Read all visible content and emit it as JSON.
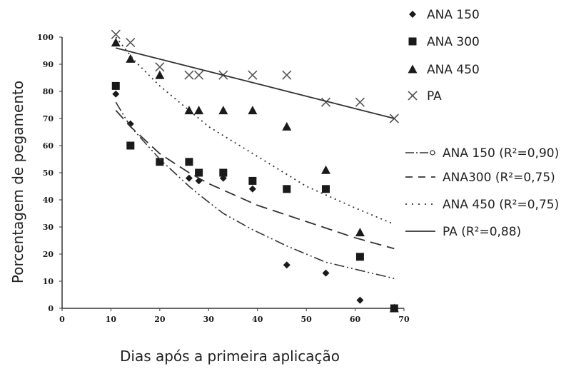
{
  "chart_data": {
    "type": "scatter",
    "xlabel": "Dias após a primeira aplicação",
    "ylabel": "Porcentagem de pegamento",
    "xlim": [
      0,
      70
    ],
    "ylim": [
      0,
      100
    ],
    "xticks": [
      "0",
      "10",
      "20",
      "30",
      "40",
      "50",
      "60",
      "70"
    ],
    "yticks": [
      "0",
      "10",
      "20",
      "30",
      "40",
      "50",
      "60",
      "70",
      "80",
      "90",
      "100"
    ],
    "grid": false,
    "legend_position": "right",
    "series": [
      {
        "name": "ANA 150",
        "marker": "diamond",
        "points": [
          [
            11,
            79
          ],
          [
            14,
            68
          ],
          [
            20,
            54
          ],
          [
            26,
            48
          ],
          [
            28,
            47
          ],
          [
            33,
            48
          ],
          [
            39,
            44
          ],
          [
            46,
            16
          ],
          [
            54,
            13
          ],
          [
            61,
            3
          ],
          [
            68,
            0
          ]
        ]
      },
      {
        "name": "ANA 300",
        "marker": "square",
        "points": [
          [
            11,
            82
          ],
          [
            14,
            60
          ],
          [
            20,
            54
          ],
          [
            26,
            54
          ],
          [
            28,
            50
          ],
          [
            33,
            50
          ],
          [
            39,
            47
          ],
          [
            46,
            44
          ],
          [
            54,
            44
          ],
          [
            61,
            19
          ],
          [
            68,
            0
          ]
        ]
      },
      {
        "name": "ANA 450",
        "marker": "triangle",
        "points": [
          [
            11,
            98
          ],
          [
            14,
            92
          ],
          [
            20,
            86
          ],
          [
            26,
            73
          ],
          [
            28,
            73
          ],
          [
            33,
            73
          ],
          [
            39,
            73
          ],
          [
            46,
            67
          ],
          [
            54,
            51
          ],
          [
            61,
            28
          ],
          [
            68,
            0
          ]
        ]
      },
      {
        "name": "PA",
        "marker": "x",
        "points": [
          [
            11,
            101
          ],
          [
            14,
            98
          ],
          [
            20,
            89
          ],
          [
            26,
            86
          ],
          [
            28,
            86
          ],
          [
            33,
            86
          ],
          [
            39,
            86
          ],
          [
            46,
            86
          ],
          [
            54,
            76
          ],
          [
            61,
            76
          ],
          [
            68,
            70
          ]
        ]
      }
    ],
    "trendlines": [
      {
        "name": "ANA 150 (R²=0,90)",
        "style": "dash-dot-dot",
        "points": [
          [
            11,
            76
          ],
          [
            14,
            67
          ],
          [
            20,
            55
          ],
          [
            26,
            45
          ],
          [
            28,
            42
          ],
          [
            33,
            35
          ],
          [
            39,
            29
          ],
          [
            46,
            23
          ],
          [
            54,
            17
          ],
          [
            61,
            14
          ],
          [
            68,
            11
          ]
        ]
      },
      {
        "name": "ANA300 (R²=0,75)",
        "style": "long-dash",
        "points": [
          [
            11,
            73
          ],
          [
            14,
            67
          ],
          [
            20,
            57
          ],
          [
            26,
            50
          ],
          [
            30,
            46
          ],
          [
            40,
            38
          ],
          [
            50,
            32
          ],
          [
            60,
            26
          ],
          [
            68,
            22
          ]
        ]
      },
      {
        "name": "ANA 450 (R²=0,75)",
        "style": "dotted",
        "points": [
          [
            11,
            100
          ],
          [
            15,
            91
          ],
          [
            20,
            82
          ],
          [
            26,
            73
          ],
          [
            30,
            67
          ],
          [
            40,
            56
          ],
          [
            50,
            45
          ],
          [
            60,
            37
          ],
          [
            68,
            31
          ]
        ]
      },
      {
        "name": "PA (R²=0,88)",
        "style": "solid",
        "points": [
          [
            11,
            96
          ],
          [
            68,
            70
          ]
        ]
      }
    ]
  }
}
